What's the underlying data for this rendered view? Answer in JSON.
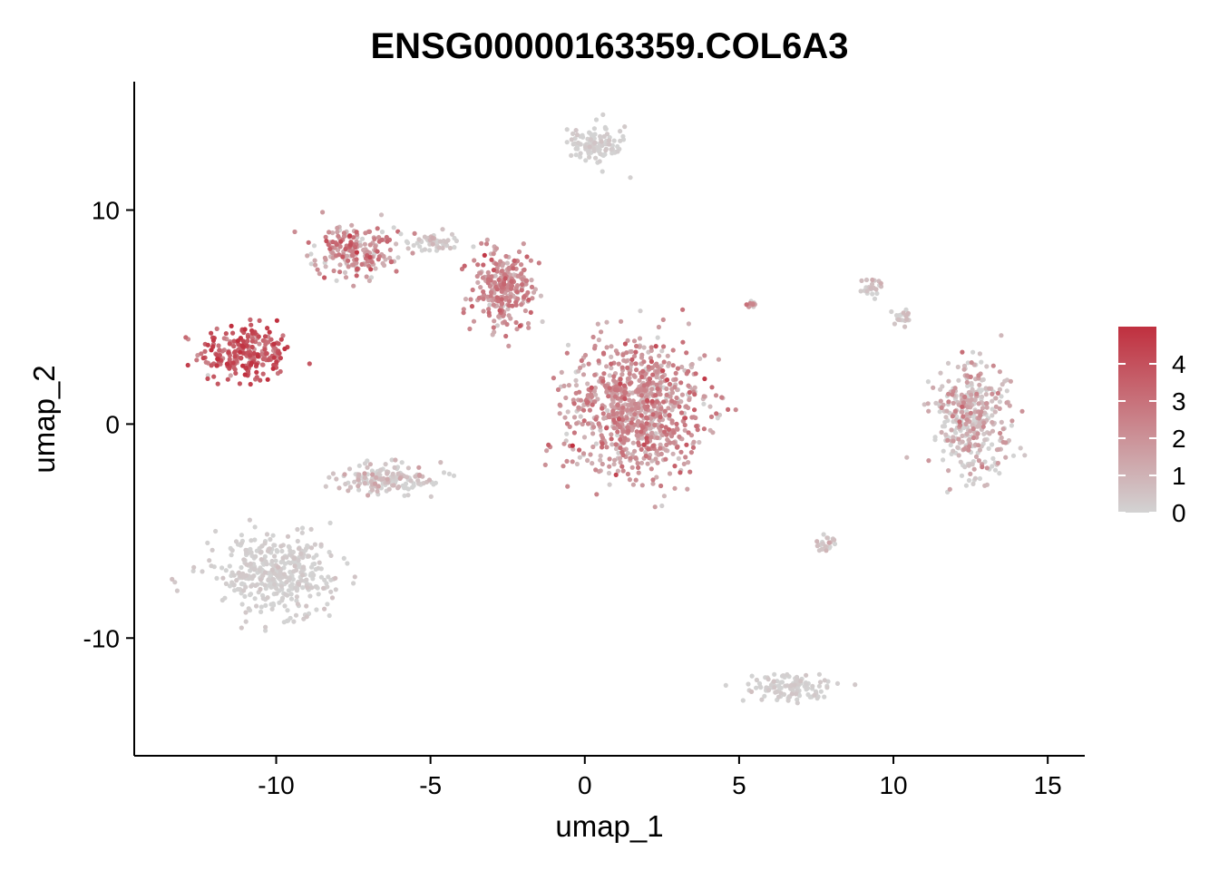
{
  "chart_data": {
    "type": "scatter",
    "title": "ENSG00000163359.COL6A3",
    "xlabel": "umap_1",
    "ylabel": "umap_2",
    "xlim": [
      -14.6,
      16.2
    ],
    "ylim": [
      -15.5,
      16.0
    ],
    "x_ticks": [
      -10,
      -5,
      0,
      5,
      10,
      15
    ],
    "x_tick_labels": [
      "-10",
      "-5",
      "0",
      "5",
      "10",
      "15"
    ],
    "y_ticks": [
      -10,
      0,
      10
    ],
    "y_tick_labels": [
      "-10",
      "0",
      "10"
    ],
    "grid": false,
    "legend_position": "right",
    "color_scale": {
      "low": "#d3d3d3",
      "high": "#c0303f",
      "min": 0,
      "max": 5,
      "ticks": [
        0,
        1,
        2,
        3,
        4
      ],
      "tick_labels": [
        "0",
        "1",
        "2",
        "3",
        "4"
      ]
    },
    "clusters": [
      {
        "id": "c1",
        "cx": -11.0,
        "cy": 3.3,
        "sx": 1.25,
        "sy": 1.1,
        "expr_mean": 3.5,
        "expr_sd": 0.9
      },
      {
        "id": "c2",
        "cx": -7.5,
        "cy": 8.1,
        "sx": 1.1,
        "sy": 1.0,
        "expr_mean": 1.9,
        "expr_sd": 1.1
      },
      {
        "id": "c3",
        "cx": -2.6,
        "cy": 6.3,
        "sx": 0.9,
        "sy": 1.6,
        "expr_mean": 2.0,
        "expr_sd": 0.8
      },
      {
        "id": "c4",
        "cx": 1.7,
        "cy": 0.8,
        "sx": 1.85,
        "sy": 2.6,
        "expr_mean": 1.8,
        "expr_sd": 0.9
      },
      {
        "id": "c5",
        "cx": 0.4,
        "cy": 13.0,
        "sx": 0.75,
        "sy": 0.8,
        "expr_mean": 0.05,
        "expr_sd": 0.2
      },
      {
        "id": "c6",
        "cx": -6.4,
        "cy": -2.6,
        "sx": 1.5,
        "sy": 0.6,
        "expr_mean": 0.3,
        "expr_sd": 0.6
      },
      {
        "id": "c7",
        "cx": -10.0,
        "cy": -7.0,
        "sx": 1.6,
        "sy": 1.4,
        "expr_mean": 0.05,
        "expr_sd": 0.2
      },
      {
        "id": "c8",
        "cx": 12.6,
        "cy": 0.3,
        "sx": 1.0,
        "sy": 2.1,
        "expr_mean": 0.5,
        "expr_sd": 1.0
      },
      {
        "id": "c9",
        "cx": 6.6,
        "cy": -12.3,
        "sx": 1.1,
        "sy": 0.6,
        "expr_mean": 0.05,
        "expr_sd": 0.2
      },
      {
        "id": "c10",
        "cx": 7.8,
        "cy": -5.6,
        "sx": 0.3,
        "sy": 0.4,
        "expr_mean": 0.3,
        "expr_sd": 0.6
      },
      {
        "id": "c11",
        "cx": 9.3,
        "cy": 6.4,
        "sx": 0.3,
        "sy": 0.4,
        "expr_mean": 0.3,
        "expr_sd": 0.6
      },
      {
        "id": "c12",
        "cx": 10.3,
        "cy": 5.0,
        "sx": 0.3,
        "sy": 0.3,
        "expr_mean": 0.2,
        "expr_sd": 0.4
      },
      {
        "id": "c13",
        "cx": 5.4,
        "cy": 5.6,
        "sx": 0.1,
        "sy": 0.1,
        "expr_mean": 1.5,
        "expr_sd": 0.8
      },
      {
        "id": "c14",
        "cx": -4.9,
        "cy": 8.5,
        "sx": 0.7,
        "sy": 0.4,
        "expr_mean": 0.2,
        "expr_sd": 0.4
      }
    ]
  }
}
